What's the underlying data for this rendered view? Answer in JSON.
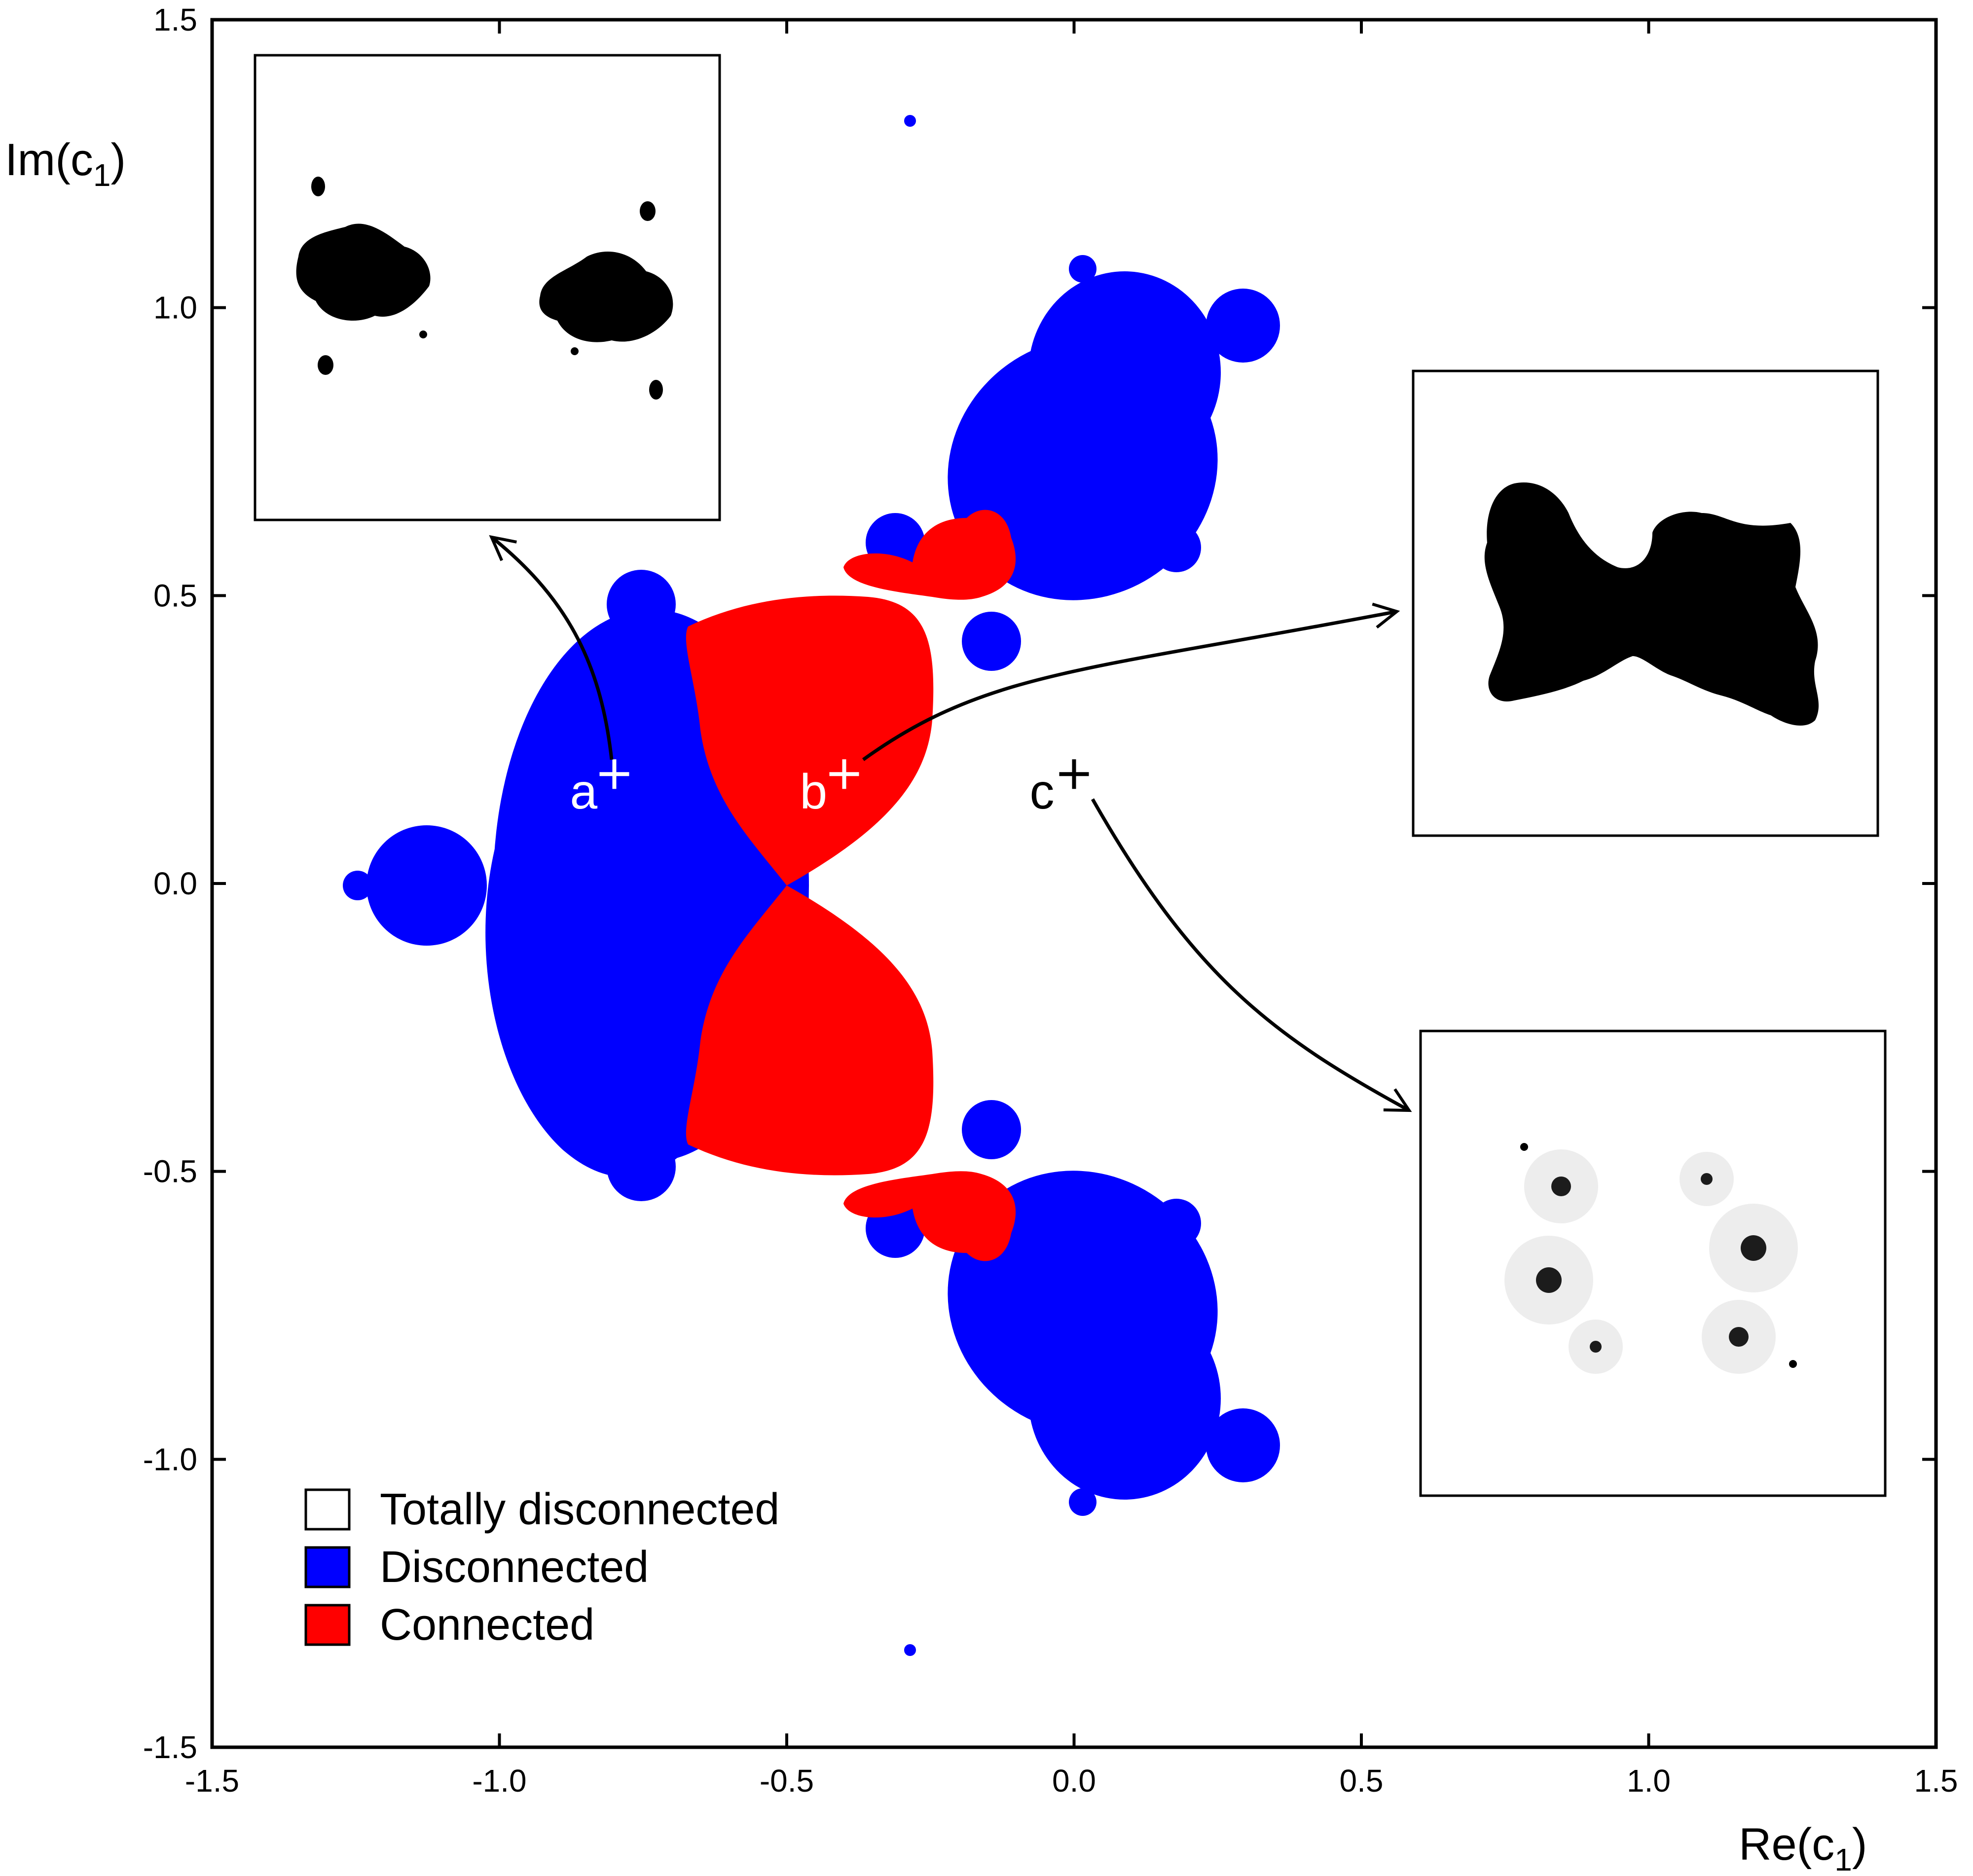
{
  "chart_data": {
    "type": "heatmap",
    "title": "",
    "xlabel": "Re(c",
    "xlabel_sub": "1",
    "xlabel_close": ")",
    "ylabel": "Im(c",
    "ylabel_sub": "1",
    "ylabel_close": ")",
    "xlim": [
      -1.5,
      1.5
    ],
    "ylim": [
      -1.5,
      1.5
    ],
    "x_ticks": [
      -1.5,
      -1.0,
      -0.5,
      0.0,
      0.5,
      1.0,
      1.5
    ],
    "x_tick_labels": [
      "-1.5",
      "-1.0",
      "-0.5",
      "0.0",
      "0.5",
      "1.0",
      "1.5"
    ],
    "y_ticks": [
      -1.5,
      -1.0,
      -0.5,
      0.0,
      0.5,
      1.0,
      1.5
    ],
    "y_tick_labels": [
      "-1.5",
      "-1.0",
      "-0.5",
      "0.0",
      "0.5",
      "1.0",
      "1.5"
    ],
    "grid": false,
    "legend_position": "bottom-left",
    "legend": [
      {
        "label": "Totally disconnected",
        "color": "#ffffff"
      },
      {
        "label": "Disconnected",
        "color": "#0000ff"
      },
      {
        "label": "Connected",
        "color": "#ff0000"
      }
    ],
    "marked_points": [
      {
        "label": "a",
        "x": -0.8,
        "y": 0.19
      },
      {
        "label": "b",
        "x": -0.4,
        "y": 0.19
      },
      {
        "label": "c",
        "x": 0.0,
        "y": 0.19
      }
    ],
    "insets": [
      {
        "for_point": "a",
        "content": "two separate filled components",
        "location": "top-left"
      },
      {
        "for_point": "b",
        "content": "single connected filled set",
        "location": "right-middle"
      },
      {
        "for_point": "c",
        "content": "dust-like totally disconnected set",
        "location": "right-bottom"
      }
    ],
    "colors": {
      "disconnected": "#0000ff",
      "connected": "#ff0000",
      "totally_disconnected": "#ffffff"
    }
  }
}
